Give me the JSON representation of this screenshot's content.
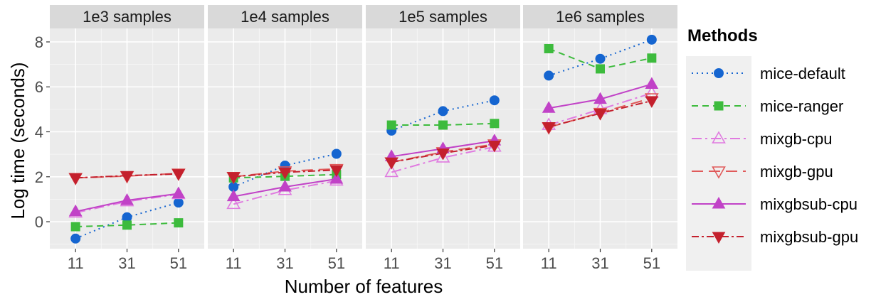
{
  "chart_data": {
    "type": "line",
    "xlabel": "Number of features",
    "ylabel": "Log time (seconds)",
    "x": [
      11,
      31,
      51
    ],
    "ylim": [
      -1.2,
      8.6
    ],
    "yticks": [
      0,
      2,
      4,
      6,
      8
    ],
    "legend_title": "Methods",
    "legend_position": "right",
    "grid": true,
    "panels": [
      {
        "title": "1e3 samples",
        "series": [
          {
            "name": "mice-default",
            "values": [
              -0.75,
              0.2,
              0.85
            ]
          },
          {
            "name": "mice-ranger",
            "values": [
              -0.22,
              -0.15,
              -0.05
            ]
          },
          {
            "name": "mixgb-cpu",
            "values": [
              0.4,
              0.9,
              1.22
            ]
          },
          {
            "name": "mixgb-gpu",
            "values": [
              1.95,
              2.03,
              2.15
            ]
          },
          {
            "name": "mixgbsub-cpu",
            "values": [
              0.45,
              0.95,
              1.25
            ]
          },
          {
            "name": "mixgbsub-gpu",
            "values": [
              1.95,
              2.05,
              2.13
            ]
          }
        ]
      },
      {
        "title": "1e4 samples",
        "series": [
          {
            "name": "mice-default",
            "values": [
              1.55,
              2.5,
              3.02
            ]
          },
          {
            "name": "mice-ranger",
            "values": [
              1.95,
              2.02,
              2.1
            ]
          },
          {
            "name": "mixgb-cpu",
            "values": [
              0.78,
              1.4,
              1.82
            ]
          },
          {
            "name": "mixgb-gpu",
            "values": [
              2.0,
              2.25,
              2.35
            ]
          },
          {
            "name": "mixgbsub-cpu",
            "values": [
              1.12,
              1.55,
              1.9
            ]
          },
          {
            "name": "mixgbsub-gpu",
            "values": [
              2.0,
              2.2,
              2.3
            ]
          }
        ]
      },
      {
        "title": "1e5 samples",
        "series": [
          {
            "name": "mice-default",
            "values": [
              4.05,
              4.92,
              5.4
            ]
          },
          {
            "name": "mice-ranger",
            "values": [
              4.3,
              4.3,
              4.37
            ]
          },
          {
            "name": "mixgb-cpu",
            "values": [
              2.2,
              2.85,
              3.33
            ]
          },
          {
            "name": "mixgb-gpu",
            "values": [
              2.65,
              3.1,
              3.45
            ]
          },
          {
            "name": "mixgbsub-cpu",
            "values": [
              2.9,
              3.25,
              3.6
            ]
          },
          {
            "name": "mixgbsub-gpu",
            "values": [
              2.65,
              3.05,
              3.4
            ]
          }
        ]
      },
      {
        "title": "1e6 samples",
        "series": [
          {
            "name": "mice-default",
            "values": [
              6.5,
              7.25,
              8.1
            ]
          },
          {
            "name": "mice-ranger",
            "values": [
              7.7,
              6.8,
              7.28
            ]
          },
          {
            "name": "mixgb-cpu",
            "values": [
              4.3,
              5.0,
              5.72
            ]
          },
          {
            "name": "mixgb-gpu",
            "values": [
              4.2,
              4.85,
              5.5
            ]
          },
          {
            "name": "mixgbsub-cpu",
            "values": [
              5.05,
              5.45,
              6.12
            ]
          },
          {
            "name": "mixgbsub-gpu",
            "values": [
              4.22,
              4.82,
              5.38
            ]
          }
        ]
      }
    ],
    "series_styles": [
      {
        "name": "mice-default",
        "color": "#1565d0",
        "dash": "2,5",
        "marker": "circle",
        "filled": true
      },
      {
        "name": "mice-ranger",
        "color": "#3dbb3d",
        "dash": "9,6",
        "marker": "square",
        "filled": true
      },
      {
        "name": "mixgb-cpu",
        "color": "#e07be0",
        "dash": "14,5,3,5",
        "marker": "triangle-up",
        "filled": false
      },
      {
        "name": "mixgb-gpu",
        "color": "#e05a5a",
        "dash": "16,8",
        "marker": "triangle-down",
        "filled": false
      },
      {
        "name": "mixgbsub-cpu",
        "color": "#c142c7",
        "dash": "",
        "marker": "triangle-up",
        "filled": true
      },
      {
        "name": "mixgbsub-gpu",
        "color": "#c4202d",
        "dash": "10,4,3,4",
        "marker": "triangle-down",
        "filled": true
      }
    ]
  }
}
